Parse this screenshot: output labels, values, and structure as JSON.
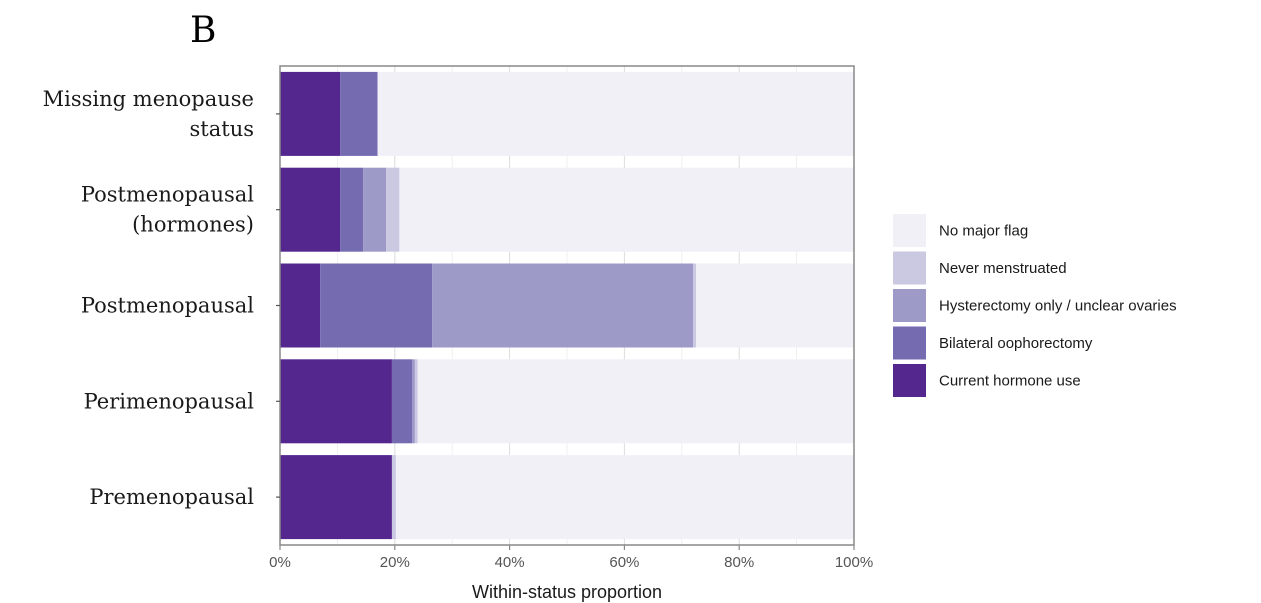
{
  "panel_label": "B",
  "chart_data": {
    "type": "bar",
    "orientation": "horizontal",
    "stacked": true,
    "categories": [
      "Missing menopause status",
      "Postmenopausal (hormones)",
      "Postmenopausal",
      "Perimenopausal",
      "Premenopausal"
    ],
    "category_label_lines": [
      [
        "Missing menopause",
        "status"
      ],
      [
        "Postmenopausal",
        "(hormones)"
      ],
      [
        "Postmenopausal"
      ],
      [
        "Perimenopausal"
      ],
      [
        "Premenopausal"
      ]
    ],
    "series": [
      {
        "name": "Current hormone use",
        "color": "#54278f",
        "values": [
          0.105,
          0.105,
          0.07,
          0.195,
          0.195
        ]
      },
      {
        "name": "Bilateral oophorectomy",
        "color": "#756bb1",
        "values": [
          0.065,
          0.04,
          0.195,
          0.035,
          0.0
        ]
      },
      {
        "name": "Hysterectomy only / unclear ovaries",
        "color": "#9e9ac8",
        "values": [
          0.0,
          0.04,
          0.455,
          0.005,
          0.0
        ]
      },
      {
        "name": "Never menstruated",
        "color": "#cbc9e2",
        "values": [
          0.0,
          0.023,
          0.005,
          0.005,
          0.007
        ]
      },
      {
        "name": "No major flag",
        "color": "#f2f0f7",
        "values": [
          0.83,
          0.792,
          0.275,
          0.76,
          0.798
        ]
      }
    ],
    "legend_order": [
      "No major flag",
      "Never menstruated",
      "Hysterectomy only / unclear ovaries",
      "Bilateral oophorectomy",
      "Current hormone use"
    ],
    "xlabel": "Within-status proportion",
    "ylabel": "",
    "xlim": [
      0,
      1
    ],
    "x_ticks": [
      0,
      0.2,
      0.4,
      0.6,
      0.8,
      1.0
    ],
    "x_tick_labels": [
      "0%",
      "20%",
      "40%",
      "60%",
      "80%",
      "100%"
    ],
    "grid": true,
    "legend_position": "right"
  }
}
